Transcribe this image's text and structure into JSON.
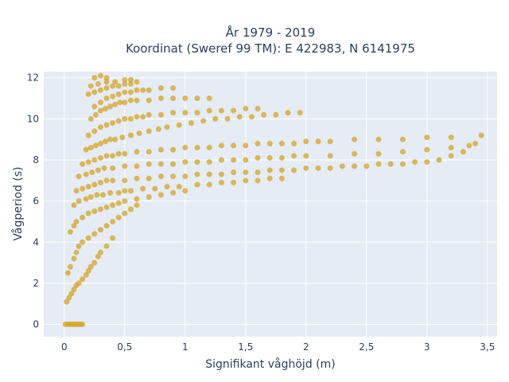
{
  "chart_data": {
    "type": "scatter",
    "title": [
      "År 1979 - 2019",
      "Koordinat (Sweref 99 TM): E 422983, N 6141975"
    ],
    "xlabel": "Signifikant våghöjd (m)",
    "ylabel": "Vågperiod (s)",
    "xlim": [
      -0.17,
      3.58
    ],
    "ylim": [
      -0.6,
      12.3
    ],
    "x_ticks": [
      0,
      0.5,
      1,
      1.5,
      2,
      2.5,
      3,
      3.5
    ],
    "x_tick_labels": [
      "0",
      "0,5",
      "1",
      "1,5",
      "2",
      "2,5",
      "3",
      "3,5"
    ],
    "y_ticks": [
      0,
      2,
      4,
      6,
      8,
      10,
      12
    ],
    "y_tick_labels": [
      "0",
      "2",
      "4",
      "6",
      "8",
      "10",
      "12"
    ],
    "grid": true,
    "marker_color": "#d4a421",
    "background_color": "#e5ecf6",
    "series": [
      {
        "x": [
          0.01,
          0.03,
          0.05,
          0.07,
          0.09,
          0.11,
          0.13,
          0.15,
          0.02,
          0.04,
          0.06,
          0.08,
          0.1,
          0.12,
          0.15,
          0.18,
          0.2,
          0.22,
          0.25,
          0.28,
          0.3,
          0.35,
          0.4,
          0.03,
          0.05,
          0.08,
          0.1,
          0.12,
          0.15,
          0.2,
          0.25,
          0.3,
          0.35,
          0.4,
          0.45,
          0.5,
          0.55,
          0.6,
          0.05,
          0.08,
          0.1,
          0.15,
          0.2,
          0.25,
          0.3,
          0.35,
          0.4,
          0.45,
          0.5,
          0.6,
          0.7,
          0.8,
          0.9,
          1.0,
          0.08,
          0.12,
          0.18,
          0.22,
          0.27,
          0.32,
          0.38,
          0.45,
          0.5,
          0.55,
          0.65,
          0.75,
          0.85,
          0.95,
          1.1,
          1.2,
          1.3,
          1.4,
          1.5,
          1.6,
          1.7,
          1.8,
          0.1,
          0.15,
          0.2,
          0.25,
          0.3,
          0.35,
          0.4,
          0.5,
          0.6,
          0.7,
          0.8,
          0.9,
          1.0,
          1.1,
          1.2,
          1.3,
          1.4,
          1.5,
          1.6,
          1.7,
          1.8,
          1.9,
          2.0,
          2.1,
          2.2,
          2.3,
          2.4,
          2.5,
          2.6,
          2.7,
          2.8,
          2.9,
          3.0,
          3.1,
          3.2,
          3.3,
          3.4,
          3.45,
          0.12,
          0.18,
          0.23,
          0.28,
          0.33,
          0.4,
          0.5,
          0.6,
          0.7,
          0.8,
          0.9,
          1.0,
          1.1,
          1.2,
          1.3,
          1.4,
          1.5,
          1.6,
          1.7,
          1.8,
          1.9,
          2.0,
          2.2,
          2.4,
          2.6,
          2.8,
          3.0,
          3.2,
          3.35,
          0.15,
          0.2,
          0.25,
          0.3,
          0.35,
          0.4,
          0.45,
          0.5,
          0.6,
          0.7,
          0.8,
          0.9,
          1.0,
          1.1,
          1.2,
          1.3,
          1.4,
          1.5,
          1.6,
          1.7,
          1.8,
          1.9,
          2.0,
          2.1,
          2.2,
          2.4,
          2.6,
          2.8,
          3.0,
          3.2,
          0.18,
          0.22,
          0.26,
          0.3,
          0.34,
          0.38,
          0.42,
          0.48,
          0.55,
          0.62,
          0.7,
          0.78,
          0.85,
          0.95,
          1.05,
          1.15,
          1.25,
          1.35,
          1.45,
          1.55,
          1.65,
          1.75,
          1.85,
          1.95,
          0.2,
          0.25,
          0.3,
          0.35,
          0.4,
          0.45,
          0.5,
          0.55,
          0.6,
          0.65,
          0.7,
          0.8,
          0.9,
          1.0,
          1.1,
          1.2,
          1.3,
          1.4,
          1.5,
          1.6,
          0.22,
          0.26,
          0.3,
          0.34,
          0.38,
          0.42,
          0.46,
          0.5,
          0.55,
          0.6,
          0.7,
          0.8,
          0.9,
          1.0,
          1.1,
          1.2,
          0.25,
          0.3,
          0.35,
          0.4,
          0.45,
          0.5,
          0.55,
          0.6,
          0.65,
          0.7,
          0.8,
          0.9,
          0.2,
          0.25,
          0.3,
          0.35,
          0.4,
          0.45,
          0.5,
          0.55,
          0.6,
          0.22,
          0.28,
          0.35,
          0.42,
          0.5,
          0.55,
          0.25,
          0.3,
          0.35
        ],
        "y": [
          0,
          0,
          0,
          0,
          0,
          0,
          0,
          0,
          1.1,
          1.3,
          1.5,
          1.7,
          1.9,
          2.0,
          2.2,
          2.4,
          2.6,
          2.8,
          3.0,
          3.3,
          3.5,
          3.8,
          4.2,
          2.5,
          2.8,
          3.2,
          3.5,
          3.8,
          4.0,
          4.2,
          4.4,
          4.6,
          4.8,
          5.0,
          5.2,
          5.4,
          5.6,
          5.8,
          4.5,
          4.8,
          5.0,
          5.2,
          5.4,
          5.5,
          5.6,
          5.7,
          5.8,
          5.9,
          6.0,
          6.1,
          6.2,
          6.3,
          6.4,
          6.5,
          5.8,
          6.0,
          6.1,
          6.2,
          6.3,
          6.3,
          6.4,
          6.4,
          6.5,
          6.5,
          6.6,
          6.6,
          6.7,
          6.7,
          6.8,
          6.8,
          6.9,
          6.9,
          7.0,
          7.0,
          7.1,
          7.1,
          6.5,
          6.6,
          6.7,
          6.8,
          6.9,
          7.0,
          7.0,
          7.0,
          7.1,
          7.1,
          7.2,
          7.2,
          7.2,
          7.3,
          7.3,
          7.3,
          7.4,
          7.4,
          7.4,
          7.5,
          7.5,
          7.5,
          7.6,
          7.6,
          7.6,
          7.7,
          7.7,
          7.7,
          7.8,
          7.8,
          7.8,
          7.9,
          7.9,
          8.0,
          8.2,
          8.4,
          8.8,
          9.2,
          7.2,
          7.3,
          7.4,
          7.5,
          7.6,
          7.6,
          7.7,
          7.7,
          7.8,
          7.8,
          7.8,
          7.9,
          7.9,
          7.9,
          8.0,
          8.0,
          8.0,
          8.1,
          8.1,
          8.1,
          8.2,
          8.2,
          8.2,
          8.3,
          8.3,
          8.4,
          8.5,
          8.6,
          8.7,
          7.8,
          7.9,
          8.0,
          8.1,
          8.2,
          8.2,
          8.3,
          8.3,
          8.4,
          8.4,
          8.5,
          8.5,
          8.6,
          8.6,
          8.6,
          8.7,
          8.7,
          8.7,
          8.8,
          8.8,
          8.8,
          8.8,
          8.9,
          8.9,
          8.9,
          9.0,
          9.0,
          9.0,
          9.1,
          9.1,
          8.5,
          8.6,
          8.7,
          8.8,
          8.9,
          9.0,
          9.0,
          9.1,
          9.2,
          9.3,
          9.4,
          9.5,
          9.6,
          9.7,
          9.8,
          9.9,
          10.0,
          10.0,
          10.1,
          10.1,
          10.2,
          10.2,
          10.3,
          10.3,
          9.2,
          9.4,
          9.6,
          9.7,
          9.8,
          9.9,
          10.0,
          10.0,
          10.1,
          10.1,
          10.2,
          10.2,
          10.3,
          10.3,
          10.3,
          10.4,
          10.4,
          10.4,
          10.5,
          10.5,
          10.0,
          10.2,
          10.4,
          10.5,
          10.6,
          10.7,
          10.8,
          10.8,
          10.9,
          10.9,
          10.9,
          11.0,
          11.0,
          11.0,
          11.0,
          11.0,
          10.6,
          10.8,
          11.0,
          11.1,
          11.2,
          11.3,
          11.3,
          11.4,
          11.4,
          11.4,
          11.5,
          11.5,
          11.2,
          11.3,
          11.4,
          11.5,
          11.6,
          11.6,
          11.7,
          11.7,
          11.8,
          11.6,
          11.7,
          11.8,
          11.8,
          11.9,
          11.9,
          12.0,
          12.1,
          12.0
        ]
      }
    ]
  }
}
